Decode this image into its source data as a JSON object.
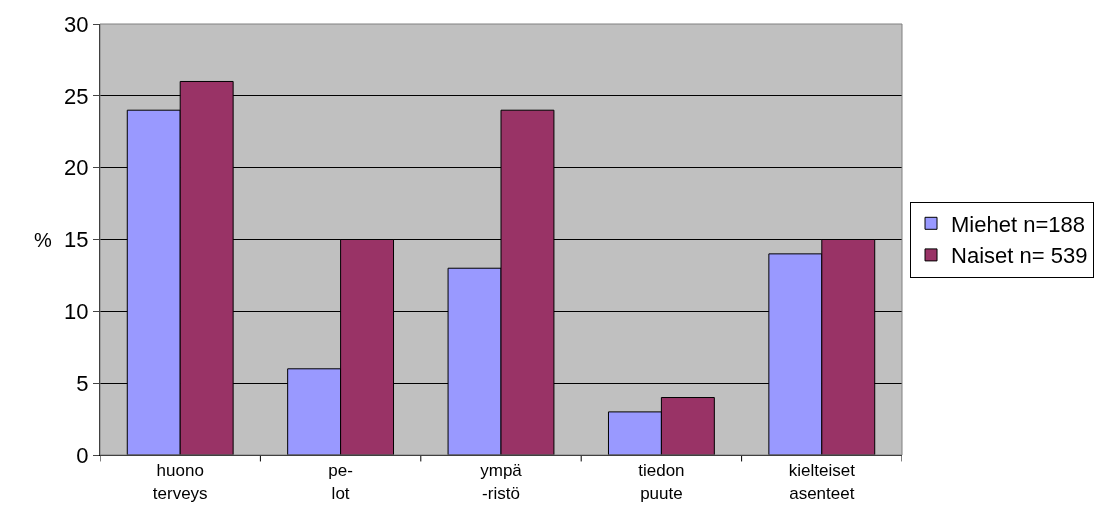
{
  "chart_data": {
    "type": "bar",
    "ylabel": "%",
    "categories": [
      "huono\nterveys",
      "pe-\nlot",
      "ympä\n-ristö",
      "tiedon\npuute",
      "kielteiset\nasenteet"
    ],
    "series": [
      {
        "name": "Miehet n=188",
        "color": "#9999ff",
        "values": [
          24,
          6,
          13,
          3,
          14
        ]
      },
      {
        "name": "Naiset n= 539",
        "color": "#993366",
        "values": [
          26,
          15,
          24,
          4,
          15
        ]
      }
    ],
    "ylim": [
      0,
      30
    ],
    "yticks": [
      0,
      5,
      10,
      15,
      20,
      25,
      30
    ],
    "grid": "y",
    "legend": "right"
  }
}
